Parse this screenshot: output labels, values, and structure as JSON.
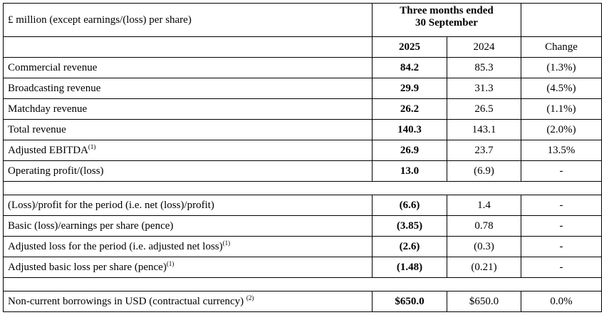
{
  "header": {
    "unit_label": "£ million (except earnings/(loss) per share)",
    "period_line1": "Three months ended",
    "period_line2": "30 September",
    "col_current": "2025",
    "col_prior": "2024",
    "col_change": "Change"
  },
  "group1": [
    {
      "label": "Commercial revenue",
      "sup": "",
      "current": "84.2",
      "prior": "85.3",
      "change": "(1.3%)"
    },
    {
      "label": "Broadcasting revenue",
      "sup": "",
      "current": "29.9",
      "prior": "31.3",
      "change": "(4.5%)"
    },
    {
      "label": "Matchday revenue",
      "sup": "",
      "current": "26.2",
      "prior": "26.5",
      "change": "(1.1%)"
    },
    {
      "label": "Total revenue",
      "sup": "",
      "current": "140.3",
      "prior": "143.1",
      "change": "(2.0%)"
    },
    {
      "label": "Adjusted EBITDA",
      "sup": "(1)",
      "current": "26.9",
      "prior": "23.7",
      "change": "13.5%"
    },
    {
      "label": "Operating profit/(loss)",
      "sup": "",
      "current": "13.0",
      "prior": "(6.9)",
      "change": "-"
    }
  ],
  "group2": [
    {
      "label": "(Loss)/profit for the period (i.e. net (loss)/profit)",
      "sup": "",
      "current": "(6.6)",
      "prior": "1.4",
      "change": "-"
    },
    {
      "label": "Basic (loss)/earnings per share (pence)",
      "sup": "",
      "current": "(3.85)",
      "prior": "0.78",
      "change": "-"
    },
    {
      "label": "Adjusted loss for the period (i.e. adjusted net loss)",
      "sup": "(1)",
      "current": "(2.6)",
      "prior": "(0.3)",
      "change": "-"
    },
    {
      "label": "Adjusted basic loss per share (pence)",
      "sup": "(1)",
      "current": "(1.48)",
      "prior": "(0.21)",
      "change": "-"
    }
  ],
  "group3": [
    {
      "label": "Non-current borrowings in USD (contractual currency) ",
      "sup": "(2)",
      "current": "$650.0",
      "prior": "$650.0",
      "change": "0.0%"
    }
  ]
}
